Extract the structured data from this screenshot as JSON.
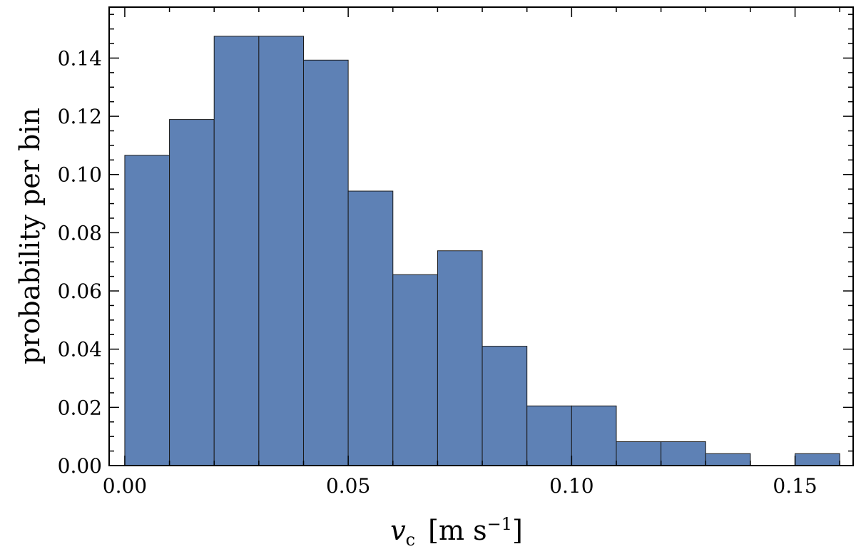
{
  "chart_data": {
    "type": "bar",
    "title": "",
    "xlabel_var": "v",
    "xlabel_sub": "c",
    "xlabel_unit_open": "[m s",
    "xlabel_unit_exp": "−1",
    "xlabel_unit_close": "]",
    "ylabel": "probability per bin",
    "bin_width": 0.01,
    "bins": [
      {
        "start": 0.0,
        "value": 0.1066
      },
      {
        "start": 0.01,
        "value": 0.1189
      },
      {
        "start": 0.02,
        "value": 0.1475
      },
      {
        "start": 0.03,
        "value": 0.1475
      },
      {
        "start": 0.04,
        "value": 0.1393
      },
      {
        "start": 0.05,
        "value": 0.0943
      },
      {
        "start": 0.06,
        "value": 0.0656
      },
      {
        "start": 0.07,
        "value": 0.0738
      },
      {
        "start": 0.08,
        "value": 0.041
      },
      {
        "start": 0.09,
        "value": 0.0205
      },
      {
        "start": 0.1,
        "value": 0.0205
      },
      {
        "start": 0.11,
        "value": 0.0082
      },
      {
        "start": 0.12,
        "value": 0.0082
      },
      {
        "start": 0.13,
        "value": 0.0041
      },
      {
        "start": 0.14,
        "value": 0
      },
      {
        "start": 0.15,
        "value": 0.0041
      }
    ],
    "xlim": [
      -0.0035,
      0.163
    ],
    "ylim": [
      0,
      0.1575
    ],
    "x_ticks": [
      "0.00",
      "0.05",
      "0.10",
      "0.15"
    ],
    "y_ticks": [
      "0.00",
      "0.02",
      "0.04",
      "0.06",
      "0.08",
      "0.10",
      "0.12",
      "0.14"
    ],
    "bar_color": "#5e81b5",
    "grid": false,
    "legend": "none"
  }
}
